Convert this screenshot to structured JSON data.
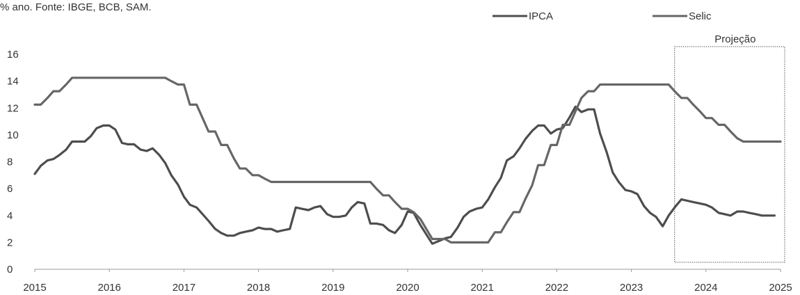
{
  "subtitle": "% ano. Fonte: IBGE, BCB, SAM.",
  "chart_data": {
    "type": "line",
    "title": "",
    "xlabel": "",
    "ylabel": "",
    "ylim": [
      0,
      16
    ],
    "xlim": [
      2015,
      2025
    ],
    "y_ticks": [
      "0",
      "2",
      "4",
      "6",
      "8",
      "10",
      "12",
      "14",
      "16"
    ],
    "x_ticks": [
      "2015",
      "2016",
      "2017",
      "2018",
      "2019",
      "2020",
      "2021",
      "2022",
      "2023",
      "2024",
      "2025"
    ],
    "grid": false,
    "legend_position": "top-right",
    "projection": {
      "label": "Projeção",
      "from": 2023.58,
      "to": 2025.0
    },
    "series": [
      {
        "name": "IPCA",
        "color": "#4d4d4d",
        "x": [
          2015.0,
          2015.08,
          2015.17,
          2015.25,
          2015.33,
          2015.42,
          2015.5,
          2015.58,
          2015.67,
          2015.75,
          2015.83,
          2015.92,
          2016.0,
          2016.08,
          2016.17,
          2016.25,
          2016.33,
          2016.42,
          2016.5,
          2016.58,
          2016.67,
          2016.75,
          2016.83,
          2016.92,
          2017.0,
          2017.08,
          2017.17,
          2017.25,
          2017.33,
          2017.42,
          2017.5,
          2017.58,
          2017.67,
          2017.75,
          2017.83,
          2017.92,
          2018.0,
          2018.08,
          2018.17,
          2018.25,
          2018.33,
          2018.42,
          2018.5,
          2018.58,
          2018.67,
          2018.75,
          2018.83,
          2018.92,
          2019.0,
          2019.08,
          2019.17,
          2019.25,
          2019.33,
          2019.42,
          2019.5,
          2019.58,
          2019.67,
          2019.75,
          2019.83,
          2019.92,
          2020.0,
          2020.08,
          2020.17,
          2020.25,
          2020.33,
          2020.42,
          2020.5,
          2020.58,
          2020.67,
          2020.75,
          2020.83,
          2020.92,
          2021.0,
          2021.08,
          2021.17,
          2021.25,
          2021.33,
          2021.42,
          2021.5,
          2021.58,
          2021.67,
          2021.75,
          2021.83,
          2021.92,
          2022.0,
          2022.08,
          2022.17,
          2022.25,
          2022.33,
          2022.42,
          2022.5,
          2022.58,
          2022.67,
          2022.75,
          2022.83,
          2022.92,
          2023.0,
          2023.08,
          2023.17,
          2023.25,
          2023.33,
          2023.42,
          2023.5,
          2023.58,
          2023.67,
          2023.75,
          2023.83,
          2023.92,
          2024.0,
          2024.08,
          2024.17,
          2024.25,
          2024.33,
          2024.42,
          2024.5,
          2024.58,
          2024.67,
          2024.75,
          2024.83,
          2024.92
        ],
        "values": [
          7.1,
          7.7,
          8.1,
          8.2,
          8.5,
          8.9,
          9.5,
          9.5,
          9.5,
          9.9,
          10.5,
          10.7,
          10.7,
          10.4,
          9.4,
          9.3,
          9.3,
          8.9,
          8.8,
          9.0,
          8.5,
          7.9,
          7.0,
          6.3,
          5.4,
          4.8,
          4.6,
          4.1,
          3.6,
          3.0,
          2.7,
          2.5,
          2.5,
          2.7,
          2.8,
          2.9,
          3.1,
          3.0,
          3.0,
          2.8,
          2.9,
          3.0,
          4.6,
          4.5,
          4.4,
          4.6,
          4.7,
          4.1,
          3.9,
          3.9,
          4.0,
          4.6,
          5.0,
          4.9,
          3.4,
          3.4,
          3.3,
          2.9,
          2.7,
          3.3,
          4.3,
          4.2,
          3.3,
          2.6,
          1.9,
          2.1,
          2.3,
          2.4,
          3.1,
          3.9,
          4.3,
          4.5,
          4.6,
          5.2,
          6.1,
          6.8,
          8.1,
          8.4,
          9.0,
          9.7,
          10.3,
          10.7,
          10.7,
          10.1,
          10.4,
          10.5,
          11.3,
          12.1,
          11.7,
          11.9,
          11.9,
          10.1,
          8.7,
          7.2,
          6.5,
          5.9,
          5.8,
          5.6,
          4.7,
          4.2,
          3.9,
          3.2,
          4.0,
          4.6,
          5.2,
          5.1,
          5.0,
          4.9,
          4.8,
          4.6,
          4.2,
          4.1,
          4.0,
          4.3,
          4.3,
          4.2,
          4.1,
          4.0,
          4.0,
          4.0
        ]
      },
      {
        "name": "Selic",
        "color": "#666666",
        "x": [
          2015.0,
          2015.08,
          2015.17,
          2015.25,
          2015.33,
          2015.42,
          2015.5,
          2015.58,
          2015.67,
          2015.75,
          2015.83,
          2015.92,
          2016.0,
          2016.08,
          2016.17,
          2016.25,
          2016.33,
          2016.42,
          2016.5,
          2016.58,
          2016.67,
          2016.75,
          2016.83,
          2016.92,
          2017.0,
          2017.08,
          2017.17,
          2017.25,
          2017.33,
          2017.42,
          2017.5,
          2017.58,
          2017.67,
          2017.75,
          2017.83,
          2017.92,
          2018.0,
          2018.08,
          2018.17,
          2018.25,
          2018.33,
          2018.42,
          2018.5,
          2018.58,
          2018.67,
          2018.75,
          2018.83,
          2018.92,
          2019.0,
          2019.08,
          2019.17,
          2019.25,
          2019.33,
          2019.42,
          2019.5,
          2019.58,
          2019.67,
          2019.75,
          2019.83,
          2019.92,
          2020.0,
          2020.08,
          2020.17,
          2020.25,
          2020.33,
          2020.42,
          2020.5,
          2020.58,
          2020.67,
          2020.75,
          2020.83,
          2020.92,
          2021.0,
          2021.08,
          2021.17,
          2021.25,
          2021.33,
          2021.42,
          2021.5,
          2021.58,
          2021.67,
          2021.75,
          2021.83,
          2021.92,
          2022.0,
          2022.08,
          2022.17,
          2022.25,
          2022.33,
          2022.42,
          2022.5,
          2022.58,
          2022.67,
          2022.75,
          2022.83,
          2022.92,
          2023.0,
          2023.08,
          2023.17,
          2023.25,
          2023.33,
          2023.42,
          2023.5,
          2023.58,
          2023.67,
          2023.75,
          2023.83,
          2023.92,
          2024.0,
          2024.08,
          2024.17,
          2024.25,
          2024.33,
          2024.42,
          2024.5,
          2024.58,
          2024.67,
          2024.75,
          2024.83,
          2024.92,
          2025.0
        ],
        "values": [
          12.25,
          12.25,
          12.75,
          13.25,
          13.25,
          13.75,
          14.25,
          14.25,
          14.25,
          14.25,
          14.25,
          14.25,
          14.25,
          14.25,
          14.25,
          14.25,
          14.25,
          14.25,
          14.25,
          14.25,
          14.25,
          14.25,
          14.0,
          13.75,
          13.75,
          12.25,
          12.25,
          11.25,
          10.25,
          10.25,
          9.25,
          9.25,
          8.25,
          7.5,
          7.5,
          7.0,
          7.0,
          6.75,
          6.5,
          6.5,
          6.5,
          6.5,
          6.5,
          6.5,
          6.5,
          6.5,
          6.5,
          6.5,
          6.5,
          6.5,
          6.5,
          6.5,
          6.5,
          6.5,
          6.5,
          6.0,
          5.5,
          5.5,
          5.0,
          4.5,
          4.5,
          4.25,
          3.75,
          3.0,
          2.25,
          2.25,
          2.25,
          2.0,
          2.0,
          2.0,
          2.0,
          2.0,
          2.0,
          2.0,
          2.75,
          2.75,
          3.5,
          4.25,
          4.25,
          5.25,
          6.25,
          7.75,
          7.75,
          9.25,
          9.25,
          10.75,
          10.75,
          11.75,
          12.75,
          13.25,
          13.25,
          13.75,
          13.75,
          13.75,
          13.75,
          13.75,
          13.75,
          13.75,
          13.75,
          13.75,
          13.75,
          13.75,
          13.75,
          13.25,
          12.75,
          12.75,
          12.25,
          11.75,
          11.25,
          11.25,
          10.75,
          10.75,
          10.25,
          9.75,
          9.5,
          9.5,
          9.5,
          9.5,
          9.5,
          9.5,
          9.5
        ]
      }
    ]
  }
}
